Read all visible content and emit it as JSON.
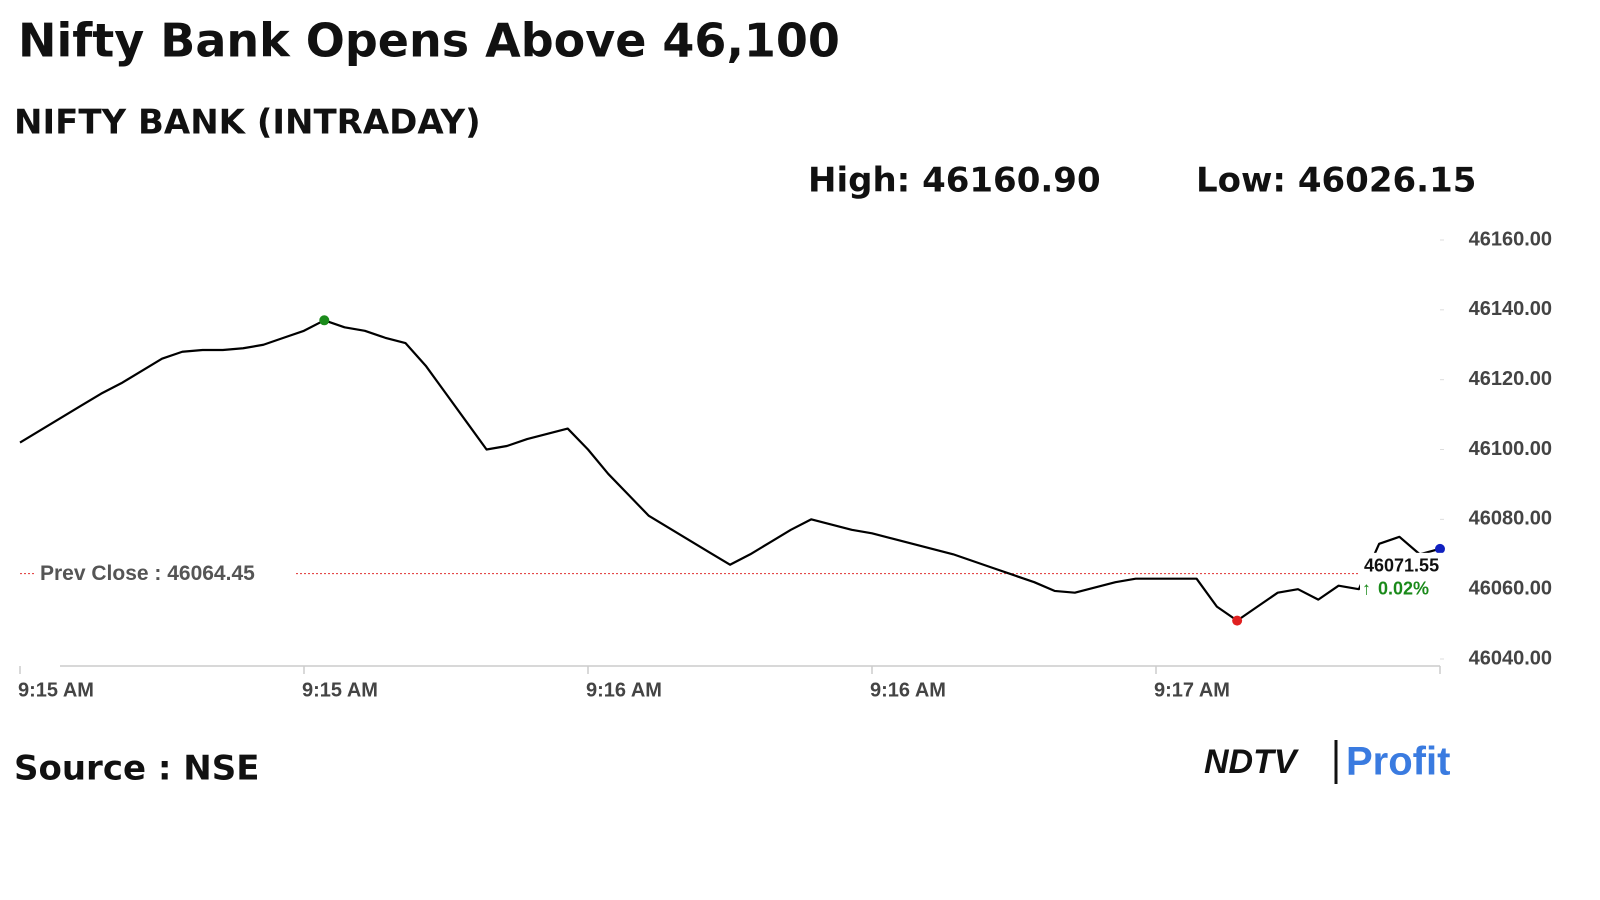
{
  "chart_data": {
    "type": "line",
    "title": "Nifty Bank Opens Above 46,100",
    "subtitle": "NIFTY BANK (INTRADAY)",
    "high_label": "High: 46160.90",
    "low_label": "Low: 46026.15",
    "prev_close": 46064.45,
    "prev_close_label": "Prev Close : 46064.45",
    "change_label": "0.02%",
    "source": "Source : NSE",
    "brand": [
      "NDTV",
      "Profit"
    ],
    "categories": [
      "9:15 AM",
      null,
      null,
      null,
      null,
      null,
      null,
      null,
      null,
      null,
      null,
      null,
      null,
      null,
      "9:15 AM",
      null,
      null,
      null,
      null,
      null,
      null,
      null,
      null,
      null,
      null,
      null,
      null,
      null,
      "9:16 AM",
      null,
      null,
      null,
      null,
      null,
      null,
      null,
      null,
      null,
      null,
      null,
      null,
      null,
      "9:16 AM",
      null,
      null,
      null,
      null,
      null,
      null,
      null,
      null,
      null,
      null,
      null,
      null,
      null,
      "9:17 AM",
      null,
      null,
      null,
      null,
      null,
      null,
      null,
      null,
      null,
      null,
      null,
      null,
      null,
      null
    ],
    "values": [
      46102,
      46105.5,
      46109,
      46112.5,
      46116,
      46119,
      46122.5,
      46126,
      46128,
      46128.5,
      46128.5,
      46129,
      46130,
      46132,
      46134,
      46137,
      46135,
      46134,
      46132,
      46130.5,
      46124,
      46116,
      46108,
      46100,
      46101,
      46103,
      46104.5,
      46106,
      46100,
      46093,
      46087,
      46081,
      46077.5,
      46074,
      46070.5,
      46067,
      46070,
      46073.5,
      46077,
      46080,
      46078.5,
      46077,
      46076,
      46074.5,
      46073,
      46071.5,
      46070,
      46068,
      46066,
      46064,
      46062,
      46059.5,
      46059,
      46060.5,
      46062,
      46063,
      46063,
      46063,
      46063,
      46055,
      46051,
      46055,
      46059,
      46060,
      46057,
      46061,
      46060,
      46073,
      46075,
      46070,
      46071.55
    ],
    "color": "#000000",
    "high_index": 15,
    "high_color": "#1a8a1a",
    "low_index": 60,
    "low_color": "#e02020",
    "last_color": "#1020c0",
    "prev_close_color": "#e03030",
    "ylim": [
      46038,
      46160
    ],
    "yticks": [
      {
        "value": 46040,
        "label": "46040.00"
      },
      {
        "value": 46060,
        "label": "46060.00"
      },
      {
        "value": 46080,
        "label": "46080.00"
      },
      {
        "value": 46100,
        "label": "46100.00"
      },
      {
        "value": 46120,
        "label": "46120.00"
      },
      {
        "value": 46140,
        "label": "46140.00"
      },
      {
        "value": 46160,
        "label": "46160.00"
      }
    ]
  }
}
